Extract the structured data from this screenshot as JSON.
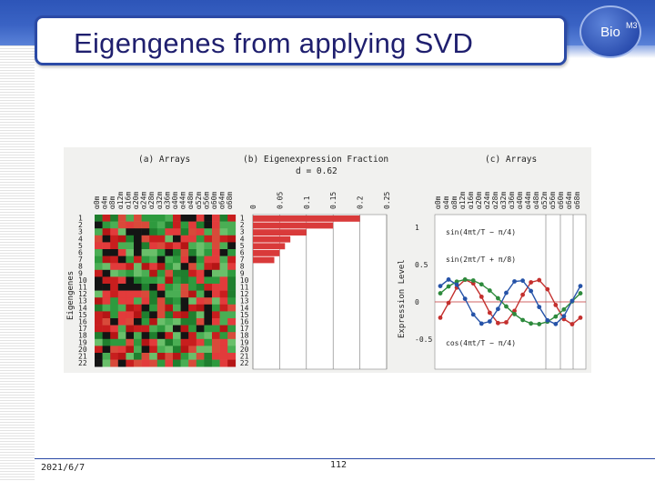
{
  "slide": {
    "title": "Eigengenes from applying SVD",
    "logo_text": "Bio",
    "logo_sup": "M3"
  },
  "figure": {
    "panel_a": {
      "label": "(a) Arrays",
      "y_axis": "Eigengenes"
    },
    "panel_b": {
      "label": "(b) Eigenexpression Fraction",
      "d_label": "d = 0.62",
      "ticks": [
        "0",
        "0.05",
        "0.1",
        "0.15",
        "0.2",
        "0.25"
      ],
      "fractions": [
        0.2,
        0.15,
        0.1,
        0.07,
        0.06,
        0.05,
        0.04
      ]
    },
    "panel_c": {
      "label": "(c) Arrays",
      "y_axis": "Expression Level",
      "ticks": [
        "1",
        "0.5",
        "0",
        "-0.5"
      ],
      "formulas": [
        "sin(4πt/T − π/4)",
        "sin(2πt/T + π/8)",
        "cos(4πt/T − π/4)"
      ]
    }
  },
  "footer": {
    "date": "2021/6/7",
    "page": "112"
  },
  "colors": {
    "band": "#2d55b8",
    "title_border": "#2b4aa6",
    "title_text": "#1f1f6e",
    "heat_red": "#d42a2a",
    "heat_green": "#2e9a3e",
    "bar_red": "#d93a3a"
  }
}
